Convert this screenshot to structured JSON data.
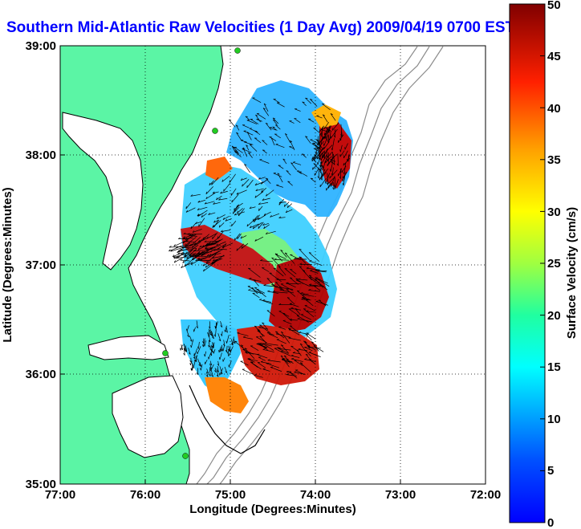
{
  "title": "Southern Mid-Atlantic Raw Velocities (1 Day Avg) 2009/04/19 0700 EST",
  "axes": {
    "xlabel": "Longitude (Degrees:Minutes)",
    "ylabel": "Latitude (Degrees:Minutes)",
    "x_ticks": [
      "77:00",
      "76:00",
      "75:00",
      "74:00",
      "73:00",
      "72:00"
    ],
    "y_ticks": [
      "39:00",
      "38:00",
      "37:00",
      "36:00",
      "35:00"
    ],
    "x_range": [
      77,
      72
    ],
    "y_range": [
      35,
      39
    ],
    "grid": "dotted"
  },
  "colorbar": {
    "label": "Surface Velocity (cm/s)",
    "range": [
      0,
      50
    ],
    "ticks": [
      "50",
      "45",
      "40",
      "35",
      "30",
      "25",
      "20",
      "15",
      "10",
      "5",
      "0"
    ],
    "colormap": "jet"
  },
  "colors": {
    "land": "#5bf5a5",
    "ocean": "#ffffff",
    "coastline": "#000000",
    "bathymetry": "#888888",
    "stations": "#22cc22",
    "title_text": "#0000ff",
    "arrows": "#000000"
  }
}
